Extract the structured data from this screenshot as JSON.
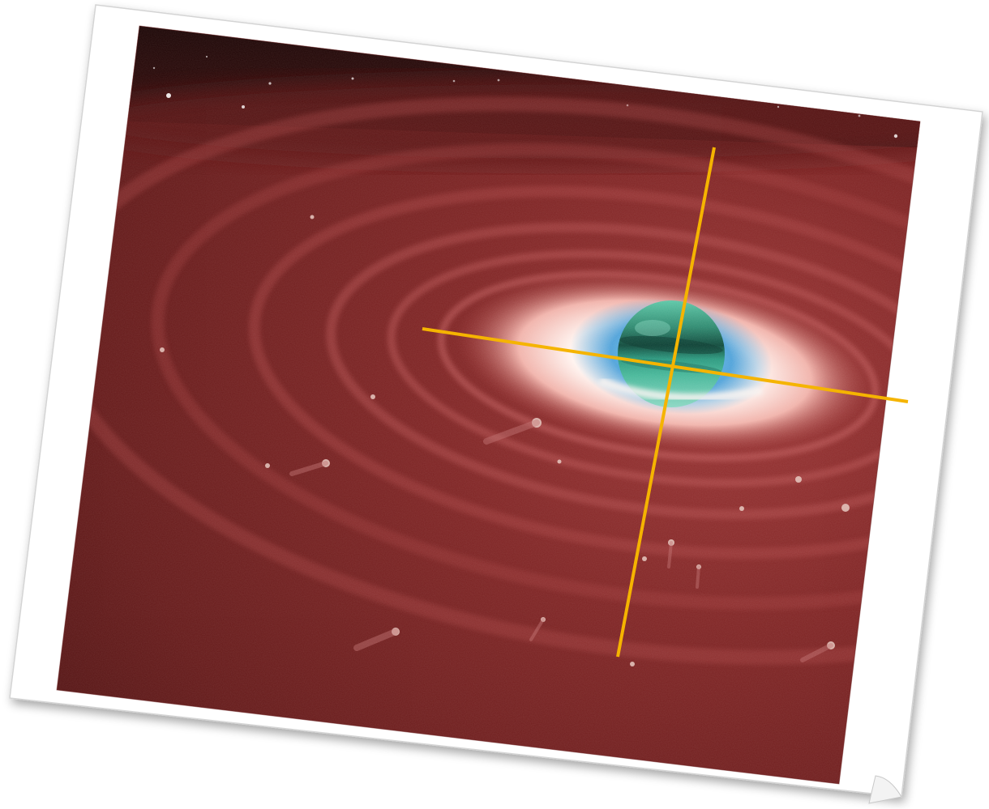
{
  "figure": {
    "subject": "planet-with-debris-disk-illustration",
    "frame_style": "tilted-polaroid-with-curled-corner",
    "colors": {
      "background": "#ffffff",
      "frame": "#ffffff",
      "frame_border": "#c8c8c8",
      "space": "#1a0606",
      "disk_dark": "#5a1414",
      "disk_mid": "#8a2a2a",
      "disk_light": "#a84040",
      "glow_white": "#fff6f2",
      "glow_pink": "#f0b0a8",
      "glow_blue": "#4aa8e0",
      "planet_teal": "#3fb69a",
      "planet_dark": "#1e6a58",
      "crosshair": "#f5b400"
    }
  }
}
